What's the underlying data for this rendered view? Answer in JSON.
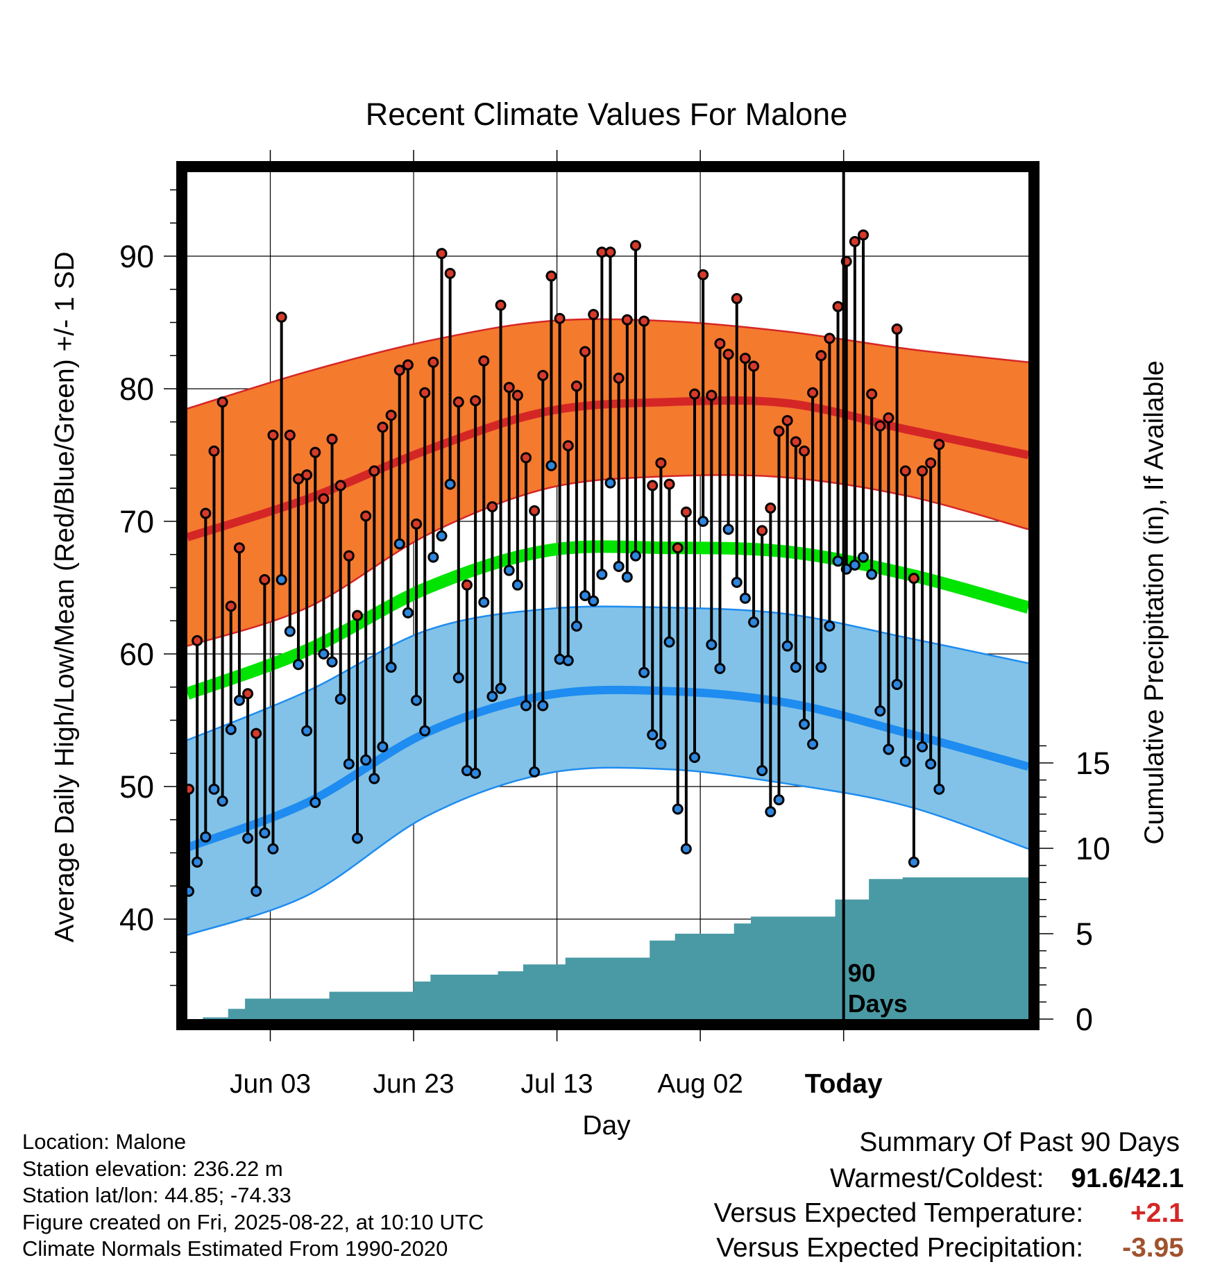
{
  "chart_data": {
    "type": "line",
    "title": "Recent Climate Values For Malone",
    "xlabel": "Day",
    "ylabel": "Average Daily High/Low/Mean (Red/Blue/Green) +/- 1 SD",
    "y2label": "Cumulative Precipitation (in), If Available",
    "x_ticks": [
      "Jun 03",
      "Jun 23",
      "Jul 13",
      "Aug 02",
      "Today"
    ],
    "y_ticks": [
      40,
      50,
      60,
      70,
      80,
      90
    ],
    "y2_ticks": [
      0,
      5,
      10,
      15
    ],
    "ylim": [
      32.5,
      97
    ],
    "y2lim": [
      0,
      15
    ],
    "grid": true,
    "days_annotation": "90 Days",
    "normal_high": [
      68.8,
      71.7,
      75.4,
      78.3,
      79.0,
      78.9,
      76.9,
      75.0
    ],
    "normal_high_upper": [
      78.5,
      81.3,
      83.6,
      85.1,
      85.1,
      84.3,
      83.0,
      82.0
    ],
    "normal_high_lower": [
      60.6,
      63.5,
      69.0,
      72.5,
      73.4,
      73.3,
      71.9,
      69.4
    ],
    "normal_mean": [
      57.0,
      60.3,
      65.0,
      67.8,
      68.0,
      67.7,
      66.0,
      63.5
    ],
    "normal_low": [
      45.4,
      48.8,
      54.1,
      56.9,
      57.2,
      56.3,
      54.0,
      51.5
    ],
    "normal_low_upper": [
      53.5,
      57.2,
      61.8,
      63.4,
      63.5,
      63.0,
      61.2,
      59.3
    ],
    "normal_low_lower": [
      38.8,
      41.8,
      47.8,
      51.0,
      51.3,
      50.2,
      48.5,
      45.3
    ],
    "daily_high": [
      49.8,
      61.0,
      70.6,
      75.3,
      79.0,
      63.6,
      68.0,
      57.0,
      54.0,
      65.6,
      76.5,
      85.4,
      76.5,
      73.2,
      73.5,
      75.2,
      71.7,
      76.2,
      72.7,
      67.4,
      62.9,
      70.4,
      73.8,
      77.1,
      78.0,
      81.4,
      81.8,
      69.8,
      79.7,
      82.0,
      90.2,
      88.7,
      79.0,
      65.2,
      79.1,
      82.1,
      71.1,
      86.3,
      80.1,
      79.5,
      74.8,
      70.8,
      81.0,
      88.5,
      85.3,
      75.7,
      80.2,
      82.8,
      85.6,
      90.3,
      90.3,
      80.8,
      85.2,
      90.8,
      85.1,
      72.7,
      74.4,
      72.8,
      68.0,
      70.7,
      79.6,
      88.6,
      79.5,
      83.4,
      82.6,
      86.8,
      82.3,
      81.7,
      69.3,
      71.0,
      76.8,
      77.6,
      76.0,
      75.3,
      79.7,
      82.5,
      83.8,
      86.2,
      89.6,
      91.1,
      91.6,
      79.6,
      77.2,
      77.8,
      84.5,
      73.8,
      65.7,
      73.8,
      74.4,
      75.8
    ],
    "daily_low": [
      42.1,
      44.3,
      46.2,
      49.8,
      48.9,
      54.3,
      56.5,
      46.1,
      42.1,
      46.5,
      45.3,
      65.6,
      61.7,
      59.2,
      54.2,
      48.8,
      60.0,
      59.4,
      56.6,
      51.7,
      46.1,
      52.0,
      50.6,
      53.0,
      59.0,
      68.3,
      63.1,
      56.5,
      54.2,
      67.3,
      68.9,
      72.8,
      58.2,
      51.2,
      51.0,
      63.9,
      56.8,
      57.4,
      66.3,
      65.2,
      56.1,
      51.1,
      56.1,
      74.2,
      59.6,
      59.5,
      62.1,
      64.4,
      64.0,
      66.0,
      72.9,
      66.6,
      65.8,
      67.4,
      58.6,
      53.9,
      53.2,
      60.9,
      48.3,
      45.3,
      52.2,
      70.0,
      60.7,
      58.9,
      69.4,
      65.4,
      64.2,
      62.4,
      51.2,
      48.1,
      49.0,
      60.6,
      59.0,
      54.7,
      53.2,
      59.0,
      62.1,
      67.0,
      66.4,
      66.7,
      67.3,
      66.0,
      55.7,
      52.8,
      57.7,
      51.9,
      44.3,
      53.0,
      51.7,
      49.8
    ],
    "cumulative_precip_steps": [
      [
        0,
        0
      ],
      [
        2,
        0.1
      ],
      [
        5,
        0.1
      ],
      [
        5,
        0.6
      ],
      [
        7,
        0.6
      ],
      [
        7,
        1.2
      ],
      [
        16,
        1.2
      ],
      [
        17,
        1.6
      ],
      [
        26,
        1.6
      ],
      [
        27,
        2.2
      ],
      [
        29,
        2.6
      ],
      [
        36,
        2.6
      ],
      [
        37,
        2.8
      ],
      [
        40,
        2.8
      ],
      [
        40,
        3.2
      ],
      [
        45,
        3.2
      ],
      [
        45,
        3.6
      ],
      [
        54,
        3.6
      ],
      [
        55,
        4.6
      ],
      [
        57,
        4.6
      ],
      [
        58,
        5.0
      ],
      [
        64,
        5.0
      ],
      [
        65,
        5.4
      ],
      [
        65,
        5.6
      ],
      [
        67,
        6.0
      ],
      [
        76,
        6.0
      ],
      [
        77,
        7.0
      ],
      [
        80,
        7.0
      ],
      [
        81,
        8.2
      ],
      [
        84,
        8.2
      ],
      [
        85,
        8.3
      ],
      [
        90,
        8.3
      ],
      [
        99,
        8.3
      ]
    ]
  },
  "location": {
    "name": "Location: Malone",
    "elevation": "Station elevation: 236.22 m",
    "latlon": "Station lat/lon: 44.85; -74.33",
    "created": "Figure created on Fri, 2025-08-22, at 10:10 UTC",
    "normals": "Climate Normals Estimated From 1990-2020"
  },
  "summary": {
    "title": "Summary Of Past 90 Days",
    "warmest_coldest_label": "Warmest/Coldest:",
    "warmest_coldest_value": "91.6/42.1",
    "temp_label": "Versus Expected Temperature:",
    "temp_value": "+2.1",
    "precip_label": "Versus Expected Precipitation:",
    "precip_value": "-3.95"
  },
  "colors": {
    "high_band": "#f47a2e",
    "high_line": "#d52626",
    "mean_line": "#00e400",
    "low_band": "#82c2e8",
    "low_line": "#1e8cf0",
    "precip": "#4a9aa5",
    "high_point": "#d63a2a",
    "low_point": "#2e86de",
    "temp_anomaly": "#d52626",
    "precip_anomaly": "#a0522d"
  }
}
